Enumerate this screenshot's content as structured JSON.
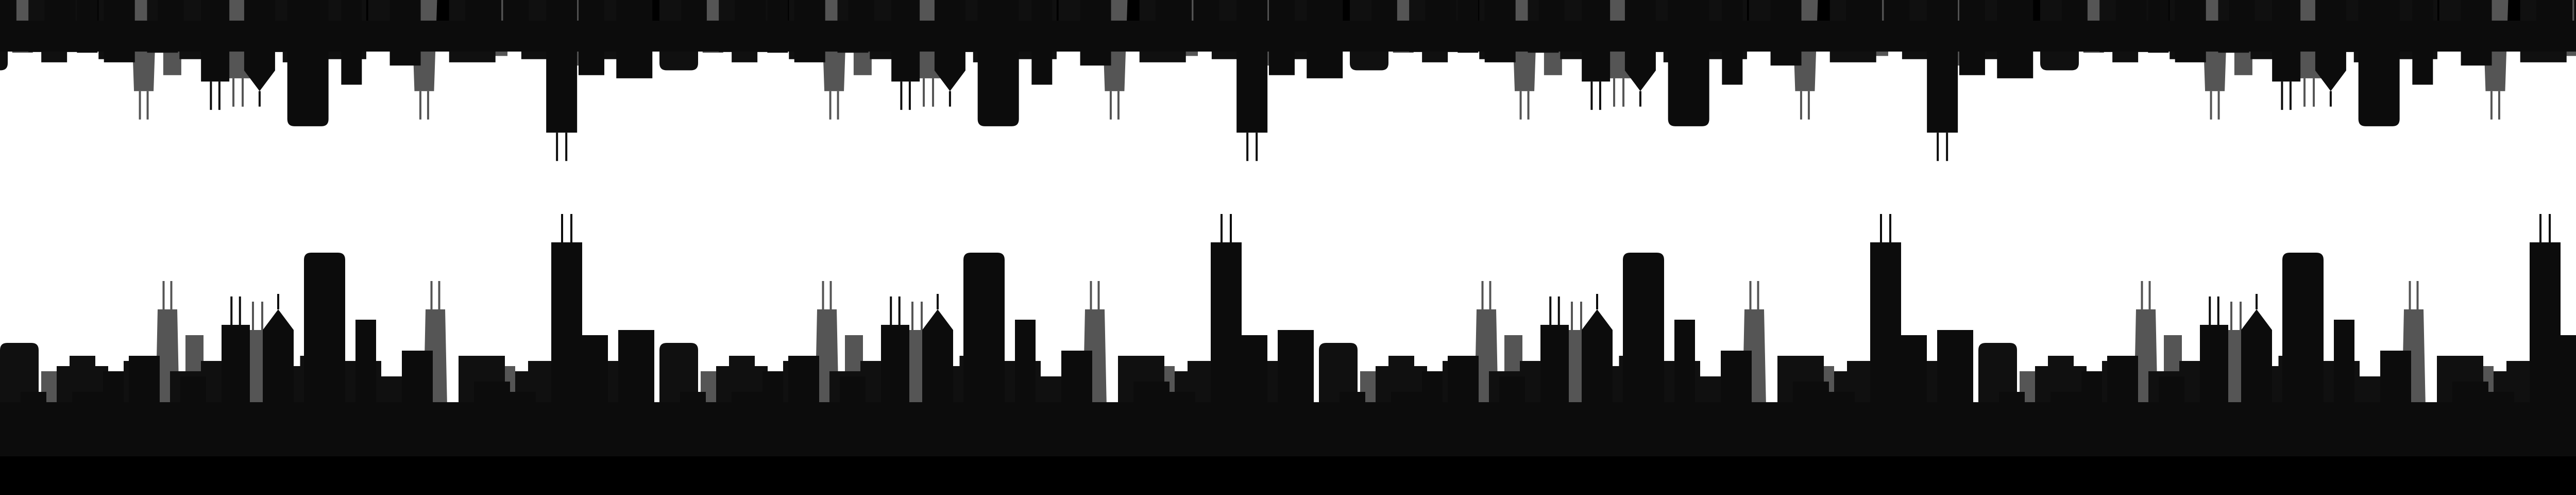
{
  "scene": {
    "background_color": "#ffffff",
    "foreground_color": "#0c0c0c",
    "midground_color": "#101010",
    "background_tower_color": "#555555",
    "tile_count_bottom": 4,
    "tile_count_top": 3.7,
    "top_band_mirrored": true
  }
}
